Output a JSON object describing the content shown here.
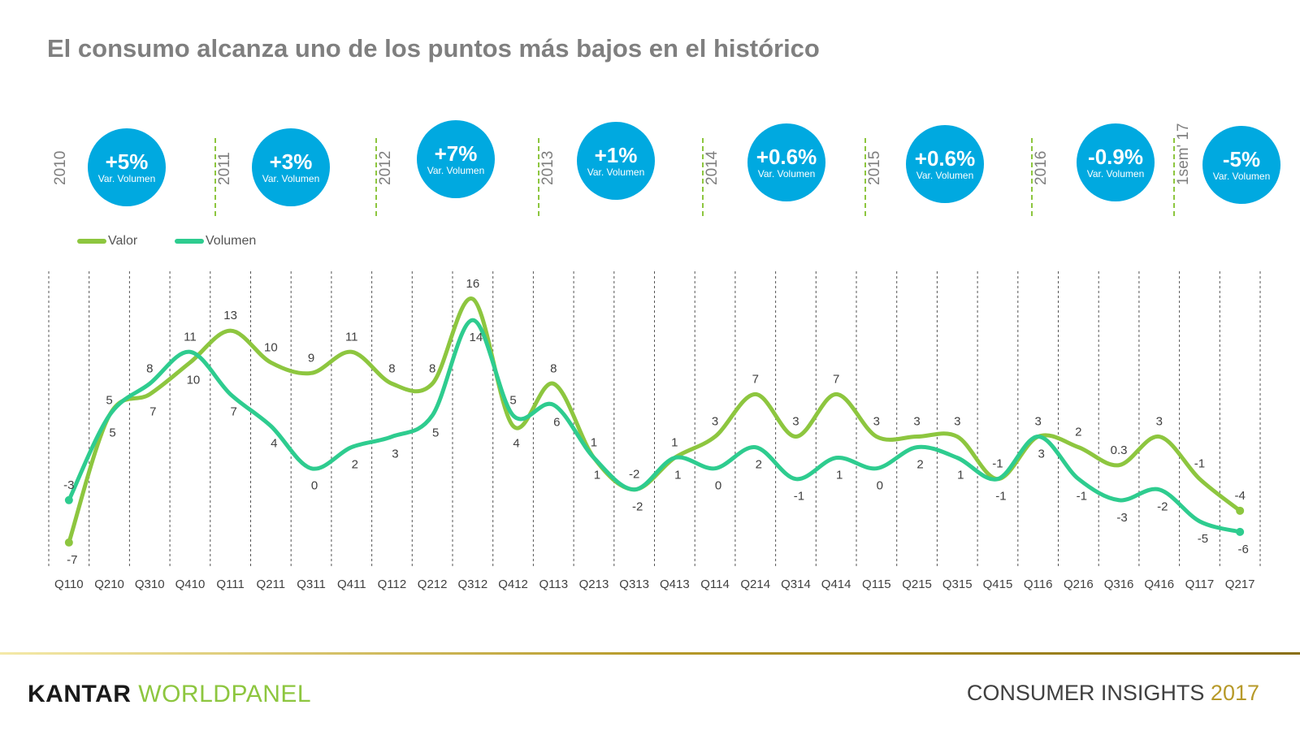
{
  "title": "El consumo alcanza uno de los puntos más bajos en el histórico",
  "year_blocks": [
    {
      "year": "2010",
      "value": "+5%",
      "sub": "Var. Volumen"
    },
    {
      "year": "2011",
      "value": "+3%",
      "sub": "Var. Volumen"
    },
    {
      "year": "2012",
      "value": "+7%",
      "sub": "Var. Volumen"
    },
    {
      "year": "2013",
      "value": "+1%",
      "sub": "Var. Volumen"
    },
    {
      "year": "2014",
      "value": "+0.6%",
      "sub": "Var. Volumen"
    },
    {
      "year": "2015",
      "value": "+0.6%",
      "sub": "Var. Volumen"
    },
    {
      "year": "2016",
      "value": "-0.9%",
      "sub": "Var. Volumen"
    },
    {
      "year": "1sem' 17",
      "value": "-5%",
      "sub": "Var. Volumen"
    }
  ],
  "colors": {
    "valor": "#8dc63f",
    "volumen": "#2ecc8f",
    "bubble": "#00a9e0",
    "divider": "#8dc63f"
  },
  "chart_data": {
    "type": "line",
    "categories": [
      "Q110",
      "Q210",
      "Q310",
      "Q410",
      "Q111",
      "Q211",
      "Q311",
      "Q411",
      "Q112",
      "Q212",
      "Q312",
      "Q412",
      "Q113",
      "Q213",
      "Q313",
      "Q413",
      "Q114",
      "Q214",
      "Q314",
      "Q414",
      "Q115",
      "Q215",
      "Q315",
      "Q415",
      "Q116",
      "Q216",
      "Q316",
      "Q416",
      "Q117",
      "Q217"
    ],
    "series": [
      {
        "name": "Valor",
        "values": [
          -7,
          5,
          7,
          10,
          13,
          10,
          9,
          11,
          8,
          8,
          16,
          4,
          8,
          1,
          -2,
          1,
          3,
          7,
          3,
          7,
          3,
          3,
          3,
          -1,
          3,
          2,
          0.3,
          3,
          -1,
          -4
        ]
      },
      {
        "name": "Volumen",
        "values": [
          -3,
          5,
          8,
          11,
          7,
          4,
          0,
          2,
          3,
          5,
          14,
          5,
          6,
          1,
          -2,
          1,
          0,
          2,
          -1,
          1,
          0,
          2,
          1,
          -1,
          3,
          -1,
          -3,
          -2,
          -5,
          -6
        ]
      }
    ],
    "title": "",
    "xlabel": "",
    "ylabel": "",
    "ylim": [
      -9,
      18
    ],
    "grid": "vertical-dashed",
    "legend": "top-left"
  },
  "footer": {
    "brand_a": "KANTAR",
    "brand_b": "WORLDPANEL",
    "right_text": "CONSUMER INSIGHTS",
    "right_year": "2017"
  }
}
